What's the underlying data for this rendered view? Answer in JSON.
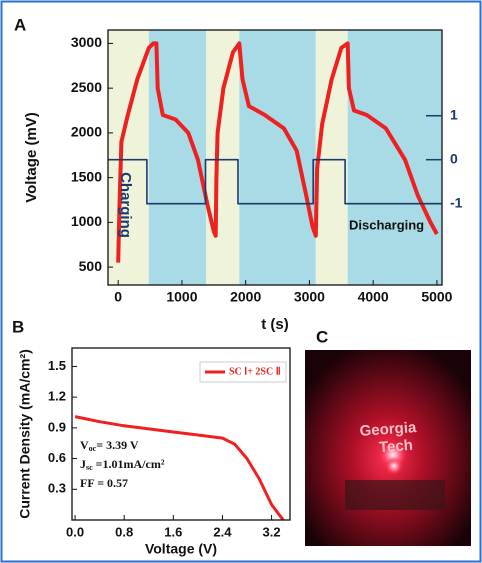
{
  "chart_data": [
    {
      "type": "line",
      "label": "A",
      "x_label": "t (s)",
      "y_label": "Voltage (mV)",
      "xlim": [
        -160,
        5080
      ],
      "xticks": [
        0,
        1000,
        2000,
        3000,
        4000,
        5000
      ],
      "ylim": [
        300,
        3150
      ],
      "yticks": [
        500,
        1000,
        1500,
        2000,
        2500,
        3000
      ],
      "y2lim": [
        -2.85,
        2.95
      ],
      "y2ticks": [
        -1,
        0,
        1
      ],
      "regions": [
        {
          "start": -160,
          "end": 480,
          "color": "#eef3da"
        },
        {
          "start": 480,
          "end": 1380,
          "color": "#a8dbe6"
        },
        {
          "start": 1380,
          "end": 1900,
          "color": "#eef3da"
        },
        {
          "start": 1900,
          "end": 3100,
          "color": "#a8dbe6"
        },
        {
          "start": 3100,
          "end": 3600,
          "color": "#eef3da"
        },
        {
          "start": 3600,
          "end": 5080,
          "color": "#a8dbe6"
        }
      ],
      "annotations": [
        "Charging",
        "Discharging"
      ],
      "series": [
        {
          "color": "#ee2020",
          "x": [
            0,
            20,
            50,
            150,
            300,
            480,
            550,
            600,
            620,
            700,
            900,
            1100,
            1250,
            1400,
            1500,
            1530,
            1540,
            1560,
            1650,
            1800,
            1900,
            1950,
            2050,
            2300,
            2600,
            2800,
            2950,
            3050,
            3100,
            3120,
            3200,
            3350,
            3500,
            3600,
            3620,
            3700,
            3900,
            4200,
            4500,
            4700,
            4900,
            5000
          ],
          "values": [
            550,
            1200,
            1900,
            2200,
            2600,
            2950,
            3000,
            3000,
            2500,
            2200,
            2150,
            2000,
            1700,
            1200,
            900,
            850,
            1500,
            2000,
            2500,
            2900,
            3000,
            2600,
            2300,
            2200,
            2050,
            1800,
            1300,
            950,
            850,
            1600,
            2100,
            2600,
            2950,
            3000,
            2500,
            2250,
            2200,
            2050,
            1700,
            1300,
            1000,
            870
          ]
        },
        {
          "color": "#1a3a6e",
          "axis": "y2",
          "x": [
            -160,
            450,
            450,
            1370,
            1370,
            1880,
            1880,
            3060,
            3060,
            3560,
            3560,
            5080
          ],
          "values": [
            0,
            0,
            -1,
            -1,
            0,
            0,
            -1,
            -1,
            0,
            0,
            -1,
            -1
          ]
        }
      ]
    },
    {
      "type": "line",
      "label": "B",
      "x_label": "Voltage (V)",
      "y_label": "Current Density (mA/cm²)",
      "xlim": [
        -0.05,
        3.5
      ],
      "xticks": [
        {
          "value": 0,
          "label": "0.0"
        },
        0.8,
        1.6,
        2.4,
        3.2
      ],
      "ylim": [
        0,
        1.68
      ],
      "yticks": [
        0.3,
        0.6,
        0.9,
        1.2,
        1.5
      ],
      "annotations": [
        {
          "symbol": "V",
          "sub": "oc",
          "text": "= 3.39 V"
        },
        {
          "symbol": "J",
          "sub": "sc",
          "text": " =1.01mA/cm²"
        },
        {
          "symbol": "FF",
          "text": " = 0.57"
        }
      ],
      "series": [
        {
          "name": "SC Ⅰ+ 2SC Ⅱ",
          "color": "#ee2020",
          "x": [
            0,
            0.4,
            0.8,
            1.2,
            1.6,
            2.0,
            2.4,
            2.6,
            2.8,
            3.0,
            3.2,
            3.39
          ],
          "values": [
            1.01,
            0.96,
            0.92,
            0.89,
            0.86,
            0.83,
            0.8,
            0.74,
            0.6,
            0.4,
            0.15,
            0
          ]
        }
      ]
    }
  ],
  "photo": {
    "label": "C",
    "text": [
      "Georgia",
      "Tech"
    ]
  }
}
